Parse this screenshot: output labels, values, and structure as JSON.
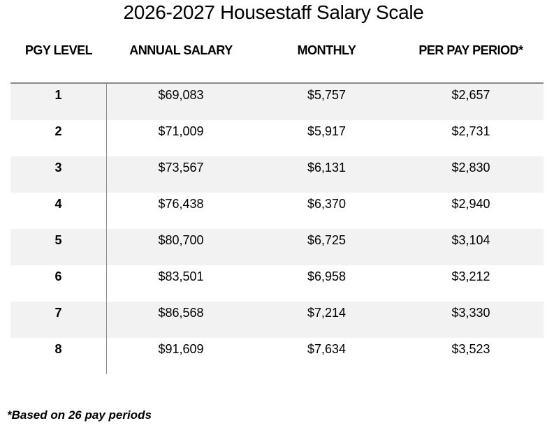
{
  "page": {
    "title": "2026-2027 Housestaff Salary Scale",
    "footnote": "*Based on 26 pay periods"
  },
  "table": {
    "columns": {
      "pgy_level": "PGY LEVEL",
      "annual_salary": "ANNUAL SALARY",
      "monthly": "MONTHLY",
      "per_pay_period": "PER PAY PERIOD*"
    },
    "rows": [
      {
        "pgy": "1",
        "annual": "$69,083",
        "monthly": "$5,757",
        "per_pay_period": "$2,657"
      },
      {
        "pgy": "2",
        "annual": "$71,009",
        "monthly": "$5,917",
        "per_pay_period": "$2,731"
      },
      {
        "pgy": "3",
        "annual": "$73,567",
        "monthly": "$6,131",
        "per_pay_period": "$2,830"
      },
      {
        "pgy": "4",
        "annual": "$76,438",
        "monthly": "$6,370",
        "per_pay_period": "$2,940"
      },
      {
        "pgy": "5",
        "annual": "$80,700",
        "monthly": "$6,725",
        "per_pay_period": "$3,104"
      },
      {
        "pgy": "6",
        "annual": "$83,501",
        "monthly": "$6,958",
        "per_pay_period": "$3,212"
      },
      {
        "pgy": "7",
        "annual": "$86,568",
        "monthly": "$7,214",
        "per_pay_period": "$3,330"
      },
      {
        "pgy": "8",
        "annual": "$91,609",
        "monthly": "$7,634",
        "per_pay_period": "$3,523"
      }
    ]
  },
  "colors": {
    "row_shading": "#f2f2f2",
    "border": "#8a8a8a",
    "text": "#000000",
    "background": "#ffffff"
  }
}
